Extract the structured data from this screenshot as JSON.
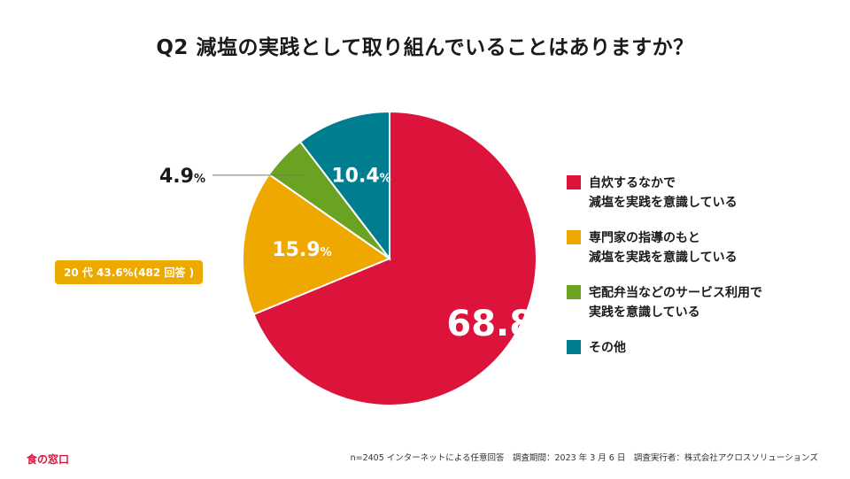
{
  "chart_data": {
    "type": "pie",
    "title": "Q2 減塩の実践として取り組んでいることはありますか？",
    "unit": "%",
    "slices": [
      {
        "name": "自炊するなかで減塩を実践を意識している",
        "legend_lines": [
          "自炊するなかで",
          "減塩を実践を意識している"
        ],
        "number": "68.8",
        "value": 68.8,
        "color": "#dc143c"
      },
      {
        "name": "専門家の指導のもと減塩を実践を意識している",
        "legend_lines": [
          "専門家の指導のもと",
          "減塩を実践を意識している"
        ],
        "number": "15.9",
        "value": 15.9,
        "color": "#efa800"
      },
      {
        "name": "宅配弁当などのサービス利用で実践を意識している",
        "legend_lines": [
          "宅配弁当などのサービス利用で",
          "実践を意識している"
        ],
        "number": "4.9",
        "value": 4.9,
        "color": "#6aa222"
      },
      {
        "name": "その他",
        "legend_lines": [
          "その他"
        ],
        "number": "10.4",
        "value": 10.4,
        "color": "#007e8f"
      }
    ],
    "start_angle_deg": 0,
    "direction": "clockwise",
    "legend_position": "right"
  },
  "annotation": {
    "badge": "20 代 43.6%(482 回答 )"
  },
  "footer": {
    "logo": "食の窓口",
    "note": "n=2405 インターネットによる任意回答　調査期間：2023 年 3 月 6 日　調査実行者：株式会社アクロスソリューションズ"
  }
}
